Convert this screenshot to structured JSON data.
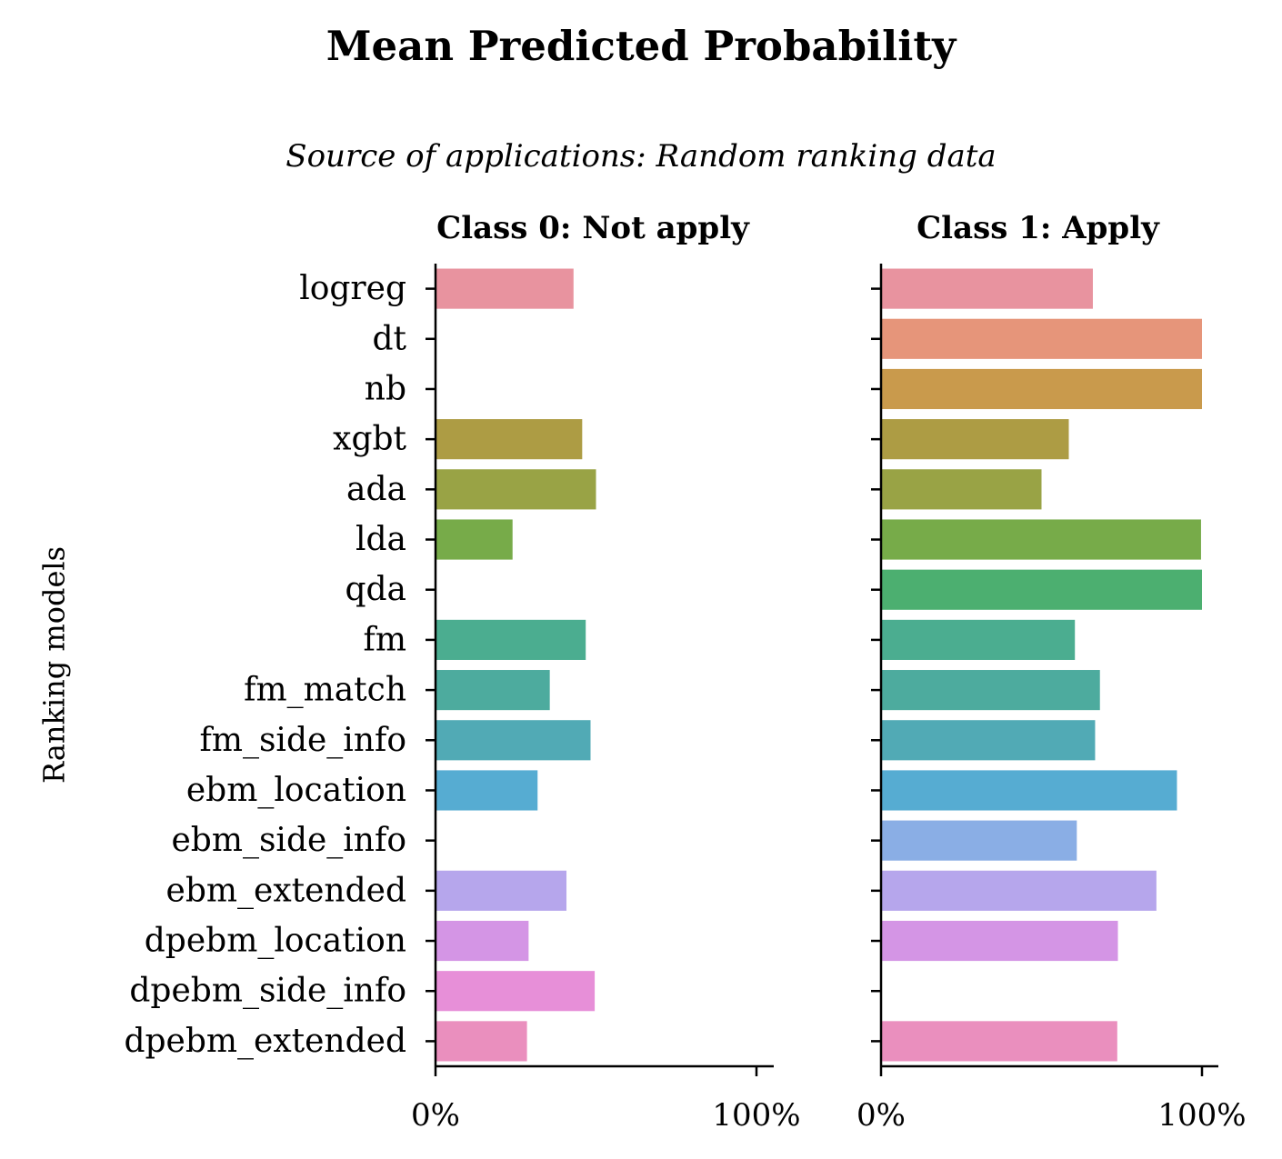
{
  "title": "Mean Predicted Probability",
  "subtitle": "Source of applications: Random ranking data",
  "chart_data": {
    "type": "bar",
    "orientation": "horizontal",
    "ylabel": "Ranking models",
    "xlabel": "",
    "xlim": [
      0,
      105
    ],
    "xticks": [
      "0%",
      "100%"
    ],
    "categories": [
      "logreg",
      "dt",
      "nb",
      "xgbt",
      "ada",
      "lda",
      "qda",
      "fm",
      "fm_match",
      "fm_side_info",
      "ebm_location",
      "ebm_side_info",
      "ebm_extended",
      "dpebm_location",
      "dpebm_side_info",
      "dpebm_extended"
    ],
    "colors": [
      "#e8939f",
      "#e6957a",
      "#c99a4c",
      "#ad9c44",
      "#99a345",
      "#77ab49",
      "#4caf70",
      "#4bad90",
      "#4dab9e",
      "#51aab5",
      "#56acd2",
      "#8aaee5",
      "#b6a6ec",
      "#d495e5",
      "#e78fd8",
      "#ea8fbe"
    ],
    "panels": [
      {
        "title": "Class 0: Not apply",
        "values": [
          43.0,
          null,
          null,
          45.7,
          50.0,
          24.0,
          null,
          46.8,
          35.6,
          48.3,
          31.8,
          null,
          40.8,
          29.0,
          49.6,
          28.5
        ]
      },
      {
        "title": "Class 1: Apply",
        "values": [
          66.0,
          100.0,
          100.0,
          58.5,
          50.0,
          99.7,
          100.0,
          60.4,
          68.2,
          66.7,
          92.2,
          61.0,
          85.8,
          73.8,
          null,
          73.6
        ]
      }
    ]
  }
}
